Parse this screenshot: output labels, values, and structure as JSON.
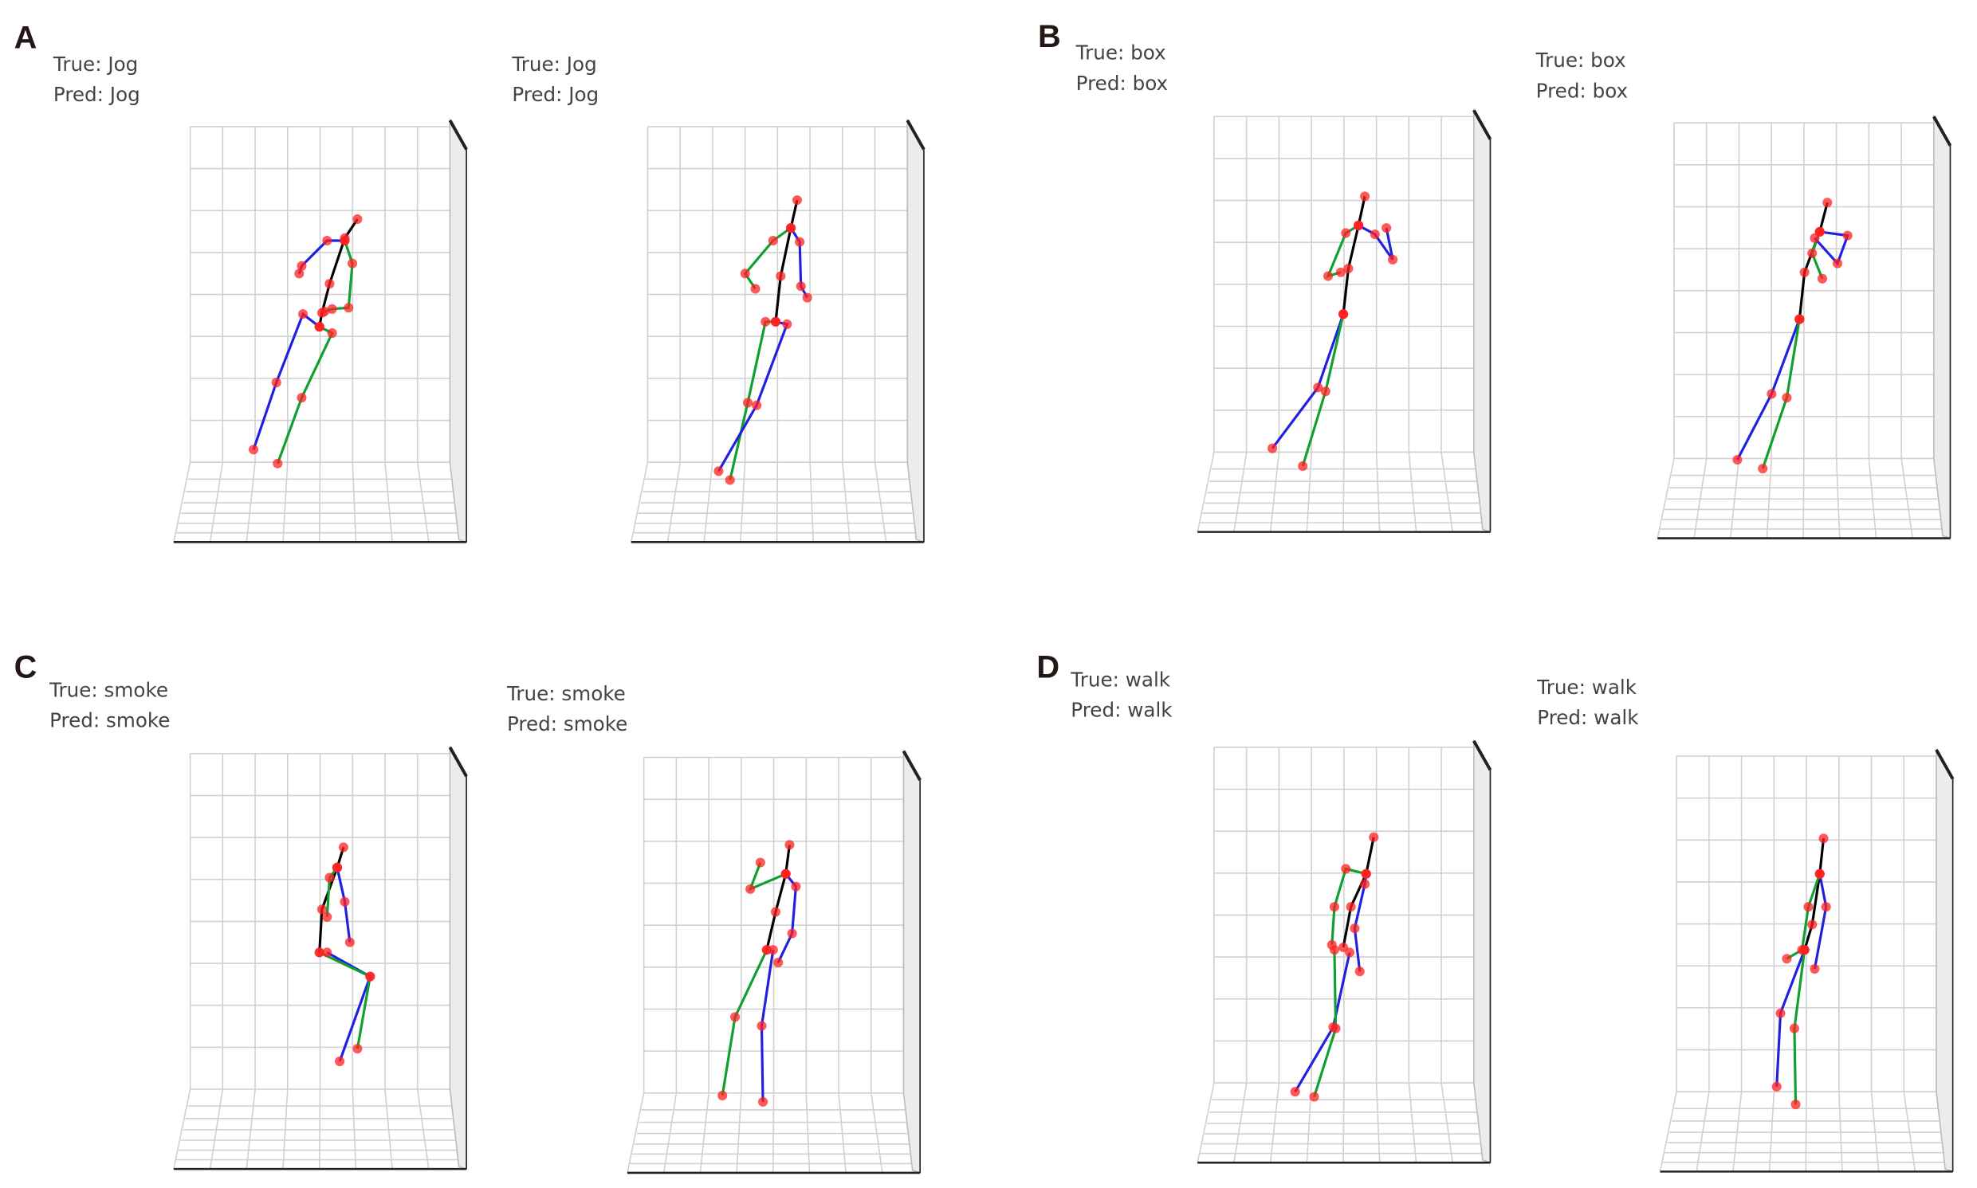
{
  "colors": {
    "joint": "#ff2020",
    "spine": "#000000",
    "blue_limb": "#2020e0",
    "green_limb": "#10a030",
    "grid": "#d0d0d0",
    "axis": "#222222"
  },
  "panels": [
    {
      "letter": "A",
      "plots": [
        {
          "true_text": "True: Jog",
          "pred_text": "Pred: Jog"
        },
        {
          "true_text": "True: Jog",
          "pred_text": "Pred: Jog"
        }
      ]
    },
    {
      "letter": "B",
      "plots": [
        {
          "true_text": "True: box",
          "pred_text": "Pred: box"
        },
        {
          "true_text": "True: box",
          "pred_text": "Pred: box"
        }
      ]
    },
    {
      "letter": "C",
      "plots": [
        {
          "true_text": "True: smoke",
          "pred_text": "Pred: smoke"
        },
        {
          "true_text": "True: smoke",
          "pred_text": "Pred: smoke"
        }
      ]
    },
    {
      "letter": "D",
      "plots": [
        {
          "true_text": "True: walk",
          "pred_text": "Pred: walk"
        },
        {
          "true_text": "True: walk",
          "pred_text": "Pred: walk"
        }
      ]
    }
  ]
}
